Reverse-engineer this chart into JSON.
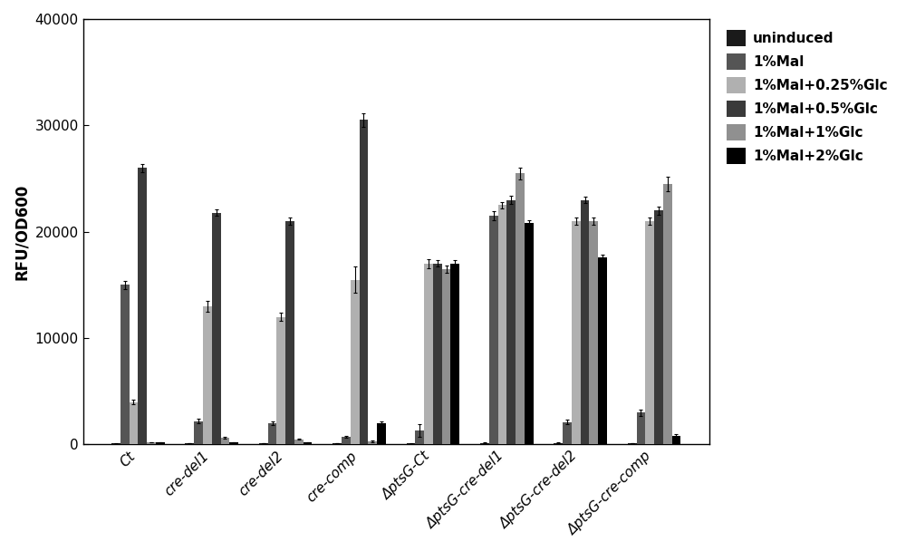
{
  "categories": [
    "Ct",
    "cre-del1",
    "cre-del2",
    "cre-comp",
    "ΔptsG-Ct",
    "ΔptsG-cre-del1",
    "ΔptsG-cre-del2",
    "ΔptsG-cre-comp"
  ],
  "series": [
    {
      "label": "uninduced",
      "color": "#1a1a1a",
      "values": [
        100,
        100,
        100,
        100,
        100,
        150,
        150,
        100
      ],
      "errors": [
        20,
        15,
        15,
        15,
        20,
        20,
        20,
        15
      ]
    },
    {
      "label": "1%Mal",
      "color": "#555555",
      "values": [
        15000,
        2200,
        2000,
        700,
        1300,
        21500,
        2100,
        3000
      ],
      "errors": [
        400,
        200,
        200,
        100,
        600,
        400,
        200,
        300
      ]
    },
    {
      "label": "1%Mal+0.25%Glc",
      "color": "#b0b0b0",
      "values": [
        4000,
        13000,
        12000,
        15500,
        17000,
        22500,
        21000,
        21000
      ],
      "errors": [
        250,
        500,
        400,
        1200,
        400,
        300,
        350,
        350
      ]
    },
    {
      "label": "1%Mal+0.5%Glc",
      "color": "#3a3a3a",
      "values": [
        26000,
        21800,
        21000,
        30500,
        17000,
        23000,
        23000,
        22000
      ],
      "errors": [
        400,
        300,
        300,
        600,
        300,
        400,
        300,
        400
      ]
    },
    {
      "label": "1%Mal+1%Glc",
      "color": "#909090",
      "values": [
        200,
        600,
        500,
        300,
        16500,
        25500,
        21000,
        24500
      ],
      "errors": [
        30,
        80,
        60,
        60,
        350,
        550,
        350,
        650
      ]
    },
    {
      "label": "1%Mal+2%Glc",
      "color": "#000000",
      "values": [
        200,
        200,
        200,
        2000,
        17000,
        20800,
        17600,
        800
      ],
      "errors": [
        25,
        25,
        25,
        200,
        350,
        300,
        250,
        200
      ]
    }
  ],
  "ylabel": "RFU/OD600",
  "ylim": [
    0,
    40000
  ],
  "yticks": [
    0,
    10000,
    20000,
    30000,
    40000
  ],
  "background_color": "#ffffff",
  "bar_width": 0.12,
  "figsize": [
    10.0,
    6.08
  ],
  "dpi": 100
}
